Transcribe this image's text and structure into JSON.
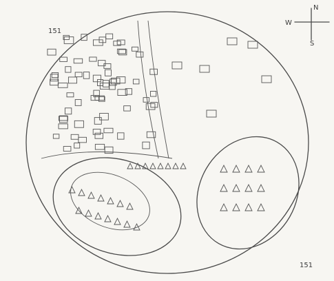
{
  "compass": {
    "north": "N",
    "south": "S",
    "west": "W"
  },
  "labels": [
    "151",
    "151"
  ]
}
